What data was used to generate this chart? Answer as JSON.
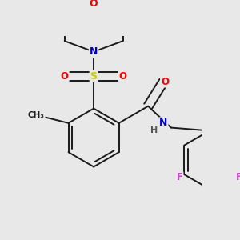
{
  "bg_color": "#e8e8e8",
  "bond_color": "#1a1a1a",
  "atom_colors": {
    "O": "#ff0000",
    "N": "#0000cc",
    "S": "#cccc00",
    "F": "#cc44cc",
    "C": "#1a1a1a",
    "H": "#555555"
  },
  "bond_lw": 1.4,
  "dbo": 0.012,
  "figsize": [
    3.0,
    3.0
  ],
  "dpi": 100
}
